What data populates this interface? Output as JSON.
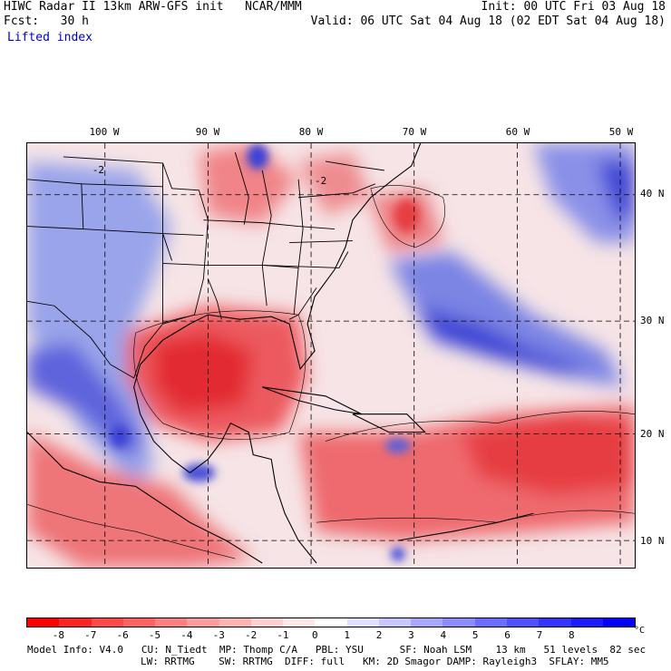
{
  "header": {
    "title": "HIWC Radar II 13km ARW-GFS init   NCAR/MMM",
    "init": "Init: 00 UTC Fri 03 Aug 18",
    "fcst": "Fcst:   30 h",
    "valid": "Valid: 06 UTC Sat 04 Aug 18 (02 EDT Sat 04 Aug 18)",
    "field": "Lifted index"
  },
  "map": {
    "lon_labels": [
      "100 W",
      "90 W",
      "80 W",
      "70 W",
      "60 W",
      "50 W"
    ],
    "lat_labels": [
      "40 N",
      "30 N",
      "20 N",
      "10 N"
    ],
    "contour_labels": [
      "-2",
      "-2"
    ],
    "colors": {
      "strong_negative": "#e8141e",
      "negative": "#f07070",
      "weak_negative": "#f8c8c8",
      "neutral": "#f4eef0",
      "weak_positive": "#c8c8f0",
      "positive": "#7878e0",
      "strong_positive": "#2828d0"
    }
  },
  "colorbar": {
    "colors": [
      "#ff0000",
      "#ff2424",
      "#ff4848",
      "#ff6464",
      "#ff8080",
      "#ff9c9c",
      "#ffb4b4",
      "#ffd0d0",
      "#ffe8e8",
      "#ffffff",
      "#e0e0ff",
      "#c8c8ff",
      "#a8a8ff",
      "#8c8cff",
      "#6c6cff",
      "#5050ff",
      "#3434ff",
      "#1c1cff",
      "#0000ff"
    ],
    "labels": [
      "-8",
      "-7",
      "-6",
      "-5",
      "-4",
      "-3",
      "-2",
      "-1",
      "0",
      "1",
      "2",
      "3",
      "4",
      "5",
      "6",
      "7",
      "8"
    ],
    "unit": "°C"
  },
  "footer": {
    "line1": "Model Info: V4.0   CU: N_Tiedt  MP: Thomp C/A   PBL: YSU      SF: Noah LSM    13 km   51 levels  82 sec",
    "line2": "LW: RRTMG    SW: RRTMG  DIFF: full   KM: 2D Smagor DAMP: Rayleigh3  SFLAY: MM5"
  }
}
